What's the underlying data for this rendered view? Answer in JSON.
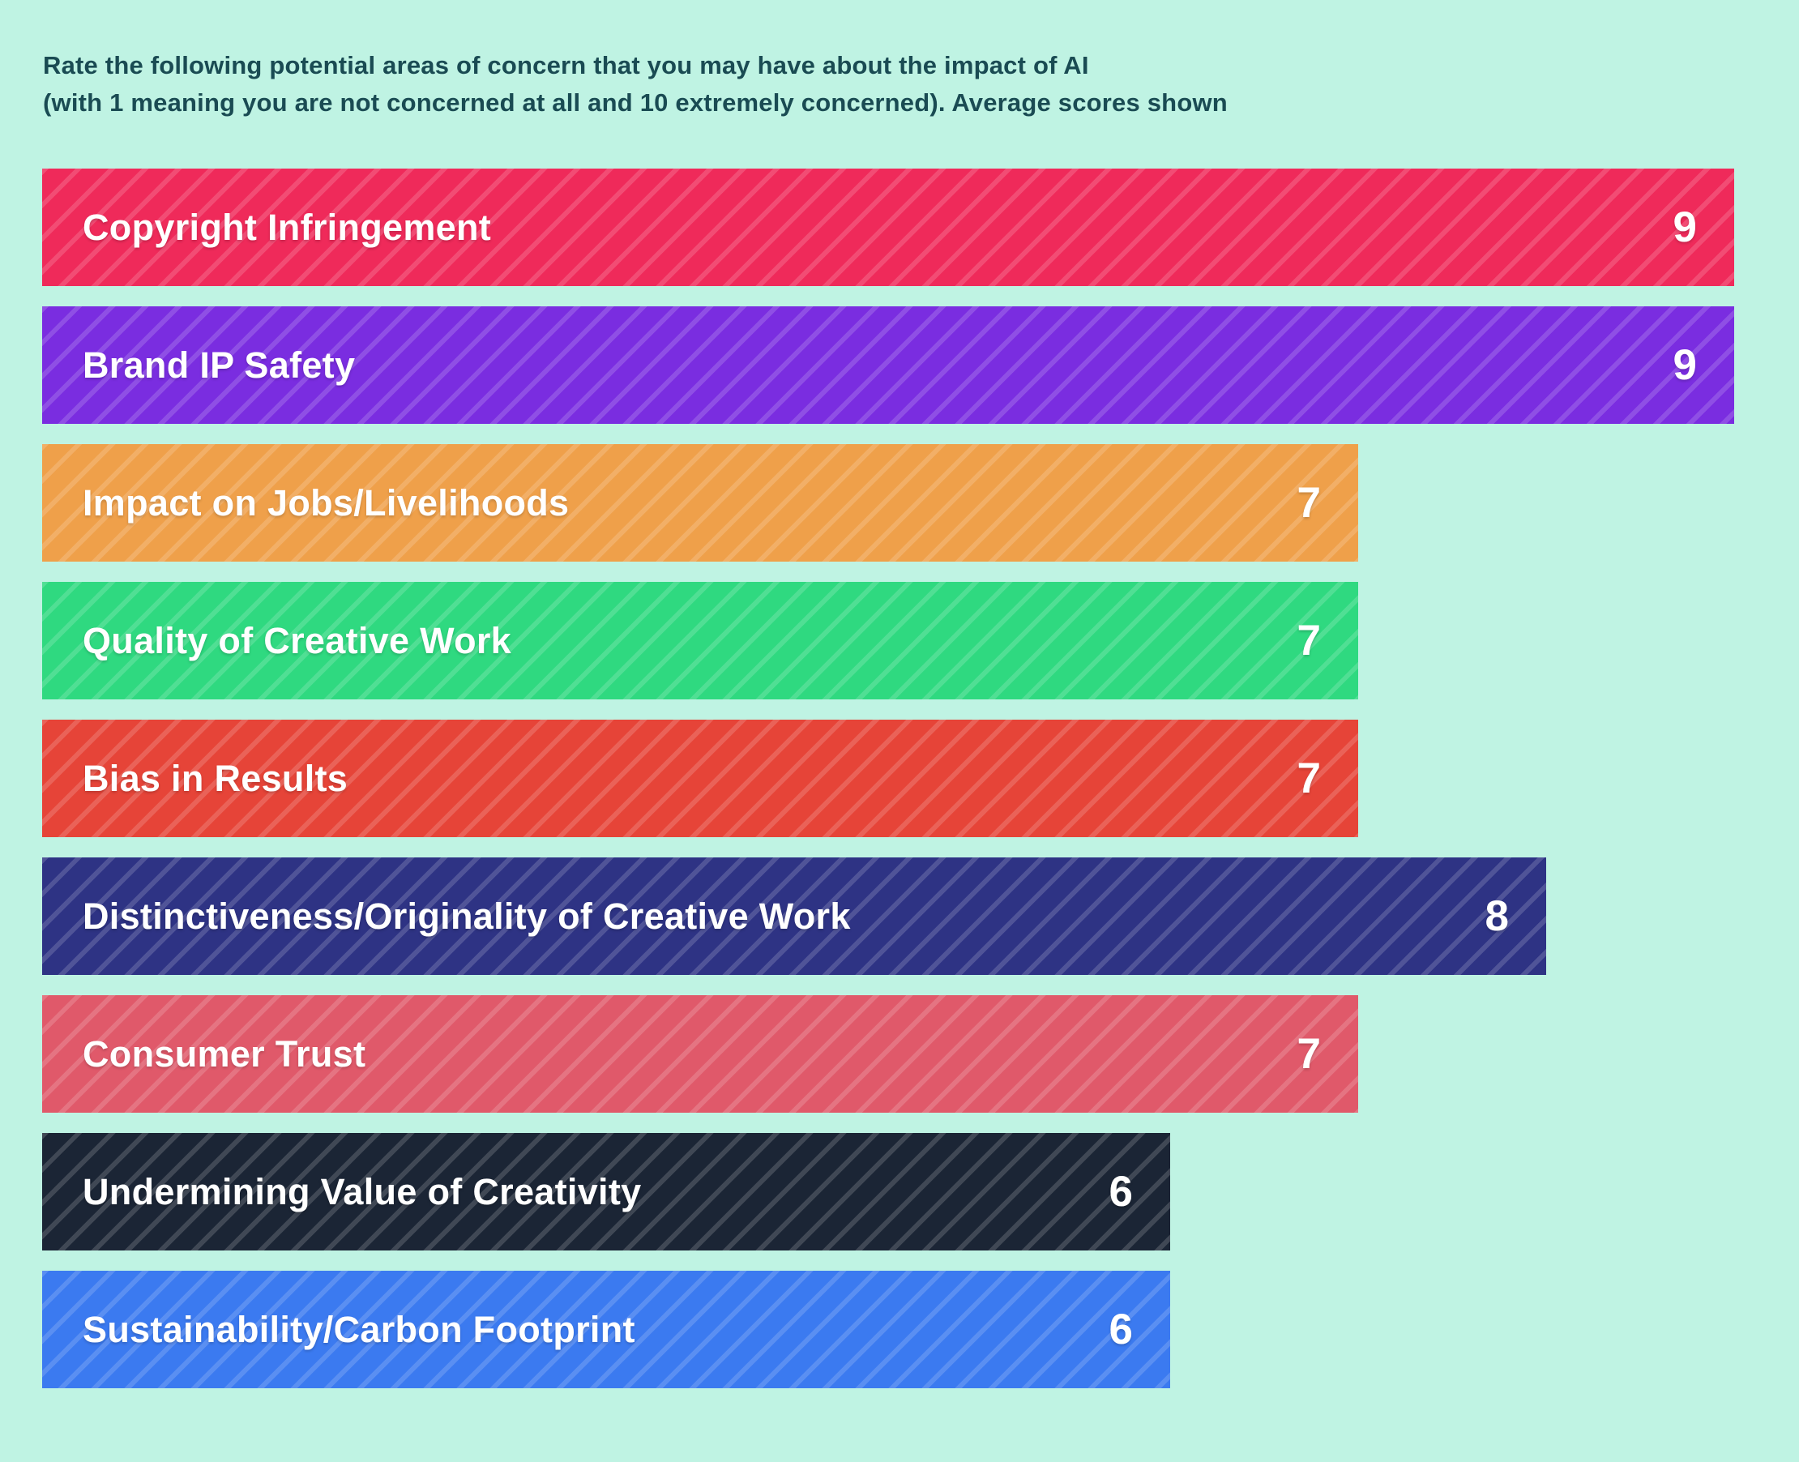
{
  "title": {
    "line1": "Rate the following potential areas of concern that you may have about the impact of AI",
    "line2": "(with 1 meaning you are not concerned at all and 10 extremely concerned). Average scores shown"
  },
  "chart_data": {
    "type": "bar",
    "orientation": "horizontal",
    "title": "Rate the following potential areas of concern that you may have about the impact of AI (with 1 meaning you are not concerned at all and 10 extremely concerned). Average scores shown",
    "categories": [
      "Copyright Infringement",
      "Brand IP Safety",
      "Impact on Jobs/Livelihoods",
      "Quality of Creative Work",
      "Bias in Results",
      "Distinctiveness/Originality of Creative Work",
      "Consumer Trust",
      "Undermining Value of Creativity",
      "Sustainability/Carbon Footprint"
    ],
    "values": [
      9,
      9,
      7,
      7,
      7,
      8,
      7,
      6,
      6
    ],
    "bar_colors": [
      "#ef2a5a",
      "#7a2de0",
      "#efa04a",
      "#2fd980",
      "#e64438",
      "#2e3384",
      "#e0596a",
      "#1b2535",
      "#3b7af0"
    ],
    "xlim": [
      0,
      9
    ],
    "grid": false,
    "legend": false,
    "value_labels_position": "inside-end",
    "background_color": "#bff3e3",
    "title_color": "#1a4b53",
    "bar_text_color": "#ffffff",
    "fill_pattern": "diagonal-stripes"
  }
}
